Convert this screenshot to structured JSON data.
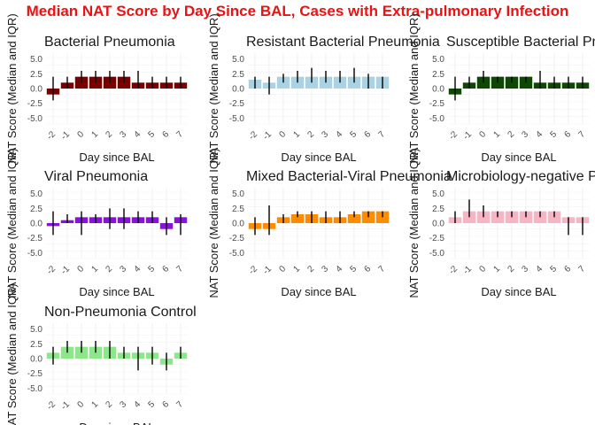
{
  "main_title": "Median NAT Score by Day Since BAL, Cases with Extra-pulmonary Infection",
  "title_color": "#ee1111",
  "chart_data": [
    {
      "type": "bar",
      "title": "Bacterial Pneumonia",
      "color": "#7a0000",
      "xlabel": "Day since BAL",
      "ylabel": "NAT Score (Median and IQR)",
      "ylim": [
        -6,
        6
      ],
      "yticks": [
        "5.0",
        "2.5",
        "0.0",
        "-2.5",
        "-5.0"
      ],
      "x": [
        "-2",
        "-1",
        "0",
        "1",
        "2",
        "3",
        "4",
        "5",
        "6",
        "7"
      ],
      "values": [
        -1,
        1,
        2,
        2,
        2,
        2,
        1,
        1,
        1,
        1
      ],
      "q1": [
        -2,
        0,
        1,
        1,
        1,
        1,
        0,
        0,
        0,
        0
      ],
      "q3": [
        2,
        2,
        3,
        3,
        3,
        3,
        3,
        2,
        2,
        2
      ]
    },
    {
      "type": "bar",
      "title": "Resistant Bacterial Pneumonia",
      "color": "#a9d3e5",
      "xlabel": "Day since BAL",
      "ylabel": "NAT Score (Median and IQR)",
      "ylim": [
        -6,
        6
      ],
      "yticks": [
        "5.0",
        "2.5",
        "0.0",
        "-2.5",
        "-5.0"
      ],
      "x": [
        "-2",
        "-1",
        "0",
        "1",
        "2",
        "3",
        "4",
        "5",
        "6",
        "7"
      ],
      "values": [
        1.5,
        1,
        2,
        2,
        2,
        2,
        2,
        2,
        2,
        2
      ],
      "q1": [
        0,
        -1,
        1,
        1,
        1,
        1,
        1,
        1,
        0,
        0
      ],
      "q3": [
        2,
        2,
        2.5,
        3,
        3.5,
        3,
        3,
        3.5,
        2.5,
        2
      ]
    },
    {
      "type": "bar",
      "title": "Susceptible Bacterial Pneumonia",
      "color": "#0b4a00",
      "xlabel": "Day since BAL",
      "ylabel": "NAT Score (Median and IQR)",
      "ylim": [
        -6,
        6
      ],
      "yticks": [
        "5.0",
        "2.5",
        "0.0",
        "-2.5",
        "-5.0"
      ],
      "x": [
        "-2",
        "-1",
        "0",
        "1",
        "2",
        "3",
        "4",
        "5",
        "6",
        "7"
      ],
      "values": [
        -1,
        1,
        2,
        2,
        2,
        2,
        1,
        1,
        1,
        1
      ],
      "q1": [
        -2,
        0,
        1,
        1,
        1,
        1,
        0,
        0,
        0,
        0
      ],
      "q3": [
        2,
        2,
        3,
        2,
        2,
        2,
        3,
        2,
        2,
        2
      ]
    },
    {
      "type": "bar",
      "title": "Viral Pneumonia",
      "color": "#8a10e0",
      "xlabel": "Day since BAL",
      "ylabel": "NAT Score (Median and IQR)",
      "ylim": [
        -6,
        6
      ],
      "yticks": [
        "5.0",
        "2.5",
        "0.0",
        "-2.5",
        "-5.0"
      ],
      "x": [
        "-2",
        "-1",
        "0",
        "1",
        "2",
        "3",
        "4",
        "5",
        "6",
        "7"
      ],
      "values": [
        -0.5,
        0.5,
        1,
        1,
        1,
        1,
        1,
        1,
        -1,
        1
      ],
      "q1": [
        -2,
        0,
        -2,
        0,
        -1,
        -1,
        0,
        0,
        -2,
        -2
      ],
      "q3": [
        2,
        1.5,
        2,
        1.5,
        2.5,
        2.5,
        2,
        2,
        1,
        1.5
      ]
    },
    {
      "type": "bar",
      "title": "Mixed Bacterial-Viral Pneumonia",
      "color": "#ff8c00",
      "xlabel": "Day since BAL",
      "ylabel": "NAT Score (Median and IQR)",
      "ylim": [
        -6,
        6
      ],
      "yticks": [
        "5.0",
        "2.5",
        "0.0",
        "-2.5",
        "-5.0"
      ],
      "x": [
        "-2",
        "-1",
        "0",
        "1",
        "2",
        "3",
        "4",
        "5",
        "6",
        "7"
      ],
      "values": [
        -1,
        -1,
        1,
        1.5,
        1.5,
        1,
        1,
        1.5,
        2,
        2
      ],
      "q1": [
        -2,
        -2,
        0,
        1,
        0,
        0,
        0,
        1,
        1,
        1
      ],
      "q3": [
        1,
        3,
        1.5,
        2,
        2,
        2,
        2,
        2,
        2,
        2
      ]
    },
    {
      "type": "bar",
      "title": "Microbiology-negative Pneumonia",
      "color": "#f7b5c4",
      "xlabel": "Day since BAL",
      "ylabel": "NAT Score (Median and IQR)",
      "ylim": [
        -6,
        6
      ],
      "yticks": [
        "5.0",
        "2.5",
        "0.0",
        "-2.5",
        "-5.0"
      ],
      "x": [
        "-2",
        "-1",
        "0",
        "1",
        "2",
        "3",
        "4",
        "5",
        "6",
        "7"
      ],
      "values": [
        1,
        2,
        2,
        2,
        2,
        2,
        2,
        2,
        1,
        1
      ],
      "q1": [
        0,
        1,
        1,
        1,
        1,
        1,
        1,
        1,
        -2,
        -2
      ],
      "q3": [
        2,
        4,
        3,
        2,
        2,
        2,
        2,
        2,
        1,
        1
      ]
    },
    {
      "type": "bar",
      "title": "Non-Pneumonia Control",
      "color": "#8ee68a",
      "xlabel": "Day since BAL",
      "ylabel": "NAT Score (Median and IQR)",
      "ylim": [
        -6,
        6
      ],
      "yticks": [
        "5.0",
        "2.5",
        "0.0",
        "-2.5",
        "-5.0"
      ],
      "x": [
        "-2",
        "-1",
        "0",
        "1",
        "2",
        "3",
        "4",
        "5",
        "6",
        "7"
      ],
      "values": [
        1,
        2,
        2,
        2,
        2,
        1,
        1,
        1,
        -1,
        1
      ],
      "q1": [
        -1,
        1,
        1,
        1,
        0,
        0,
        -2,
        -1,
        -2,
        0
      ],
      "q3": [
        2,
        3,
        3,
        3,
        3,
        2,
        2,
        2,
        1,
        2
      ]
    }
  ]
}
